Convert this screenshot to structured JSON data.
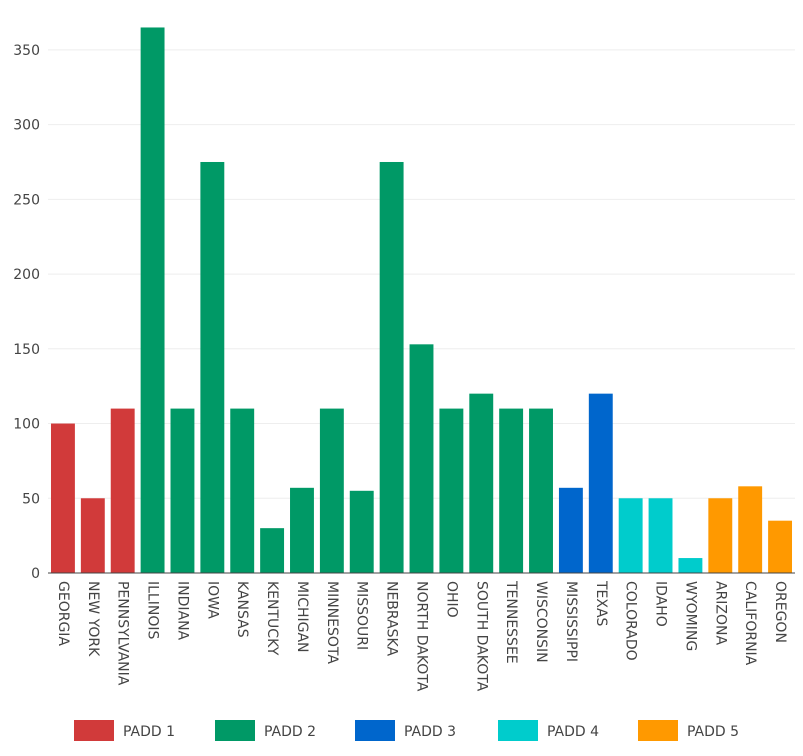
{
  "chart_data": {
    "type": "bar",
    "title": "",
    "xlabel": "",
    "ylabel": "",
    "ylim": [
      0,
      370
    ],
    "yticks": [
      0,
      50,
      100,
      150,
      200,
      250,
      300,
      350
    ],
    "grid": true,
    "legend_position": "bottom",
    "categories": [
      "GEORGIA",
      "NEW YORK",
      "PENNSYLVANIA",
      "ILLINOIS",
      "INDIANA",
      "IOWA",
      "KANSAS",
      "KENTUCKY",
      "MICHIGAN",
      "MINNESOTA",
      "MISSOURI",
      "NEBRASKA",
      "NORTH DAKOTA",
      "OHIO",
      "SOUTH DAKOTA",
      "TENNESSEE",
      "WISCONSIN",
      "MISSISSIPPI",
      "TEXAS",
      "COLORADO",
      "IDAHO",
      "WYOMING",
      "ARIZONA",
      "CALIFORNIA",
      "OREGON"
    ],
    "values": [
      100,
      50,
      110,
      365,
      110,
      275,
      110,
      30,
      57,
      110,
      55,
      275,
      153,
      110,
      120,
      110,
      110,
      57,
      120,
      50,
      50,
      10,
      50,
      58,
      35
    ],
    "groups": [
      "PADD 1",
      "PADD 1",
      "PADD 1",
      "PADD 2",
      "PADD 2",
      "PADD 2",
      "PADD 2",
      "PADD 2",
      "PADD 2",
      "PADD 2",
      "PADD 2",
      "PADD 2",
      "PADD 2",
      "PADD 2",
      "PADD 2",
      "PADD 2",
      "PADD 2",
      "PADD 3",
      "PADD 3",
      "PADD 4",
      "PADD 4",
      "PADD 4",
      "PADD 5",
      "PADD 5",
      "PADD 5"
    ],
    "series": [
      {
        "name": "PADD 1",
        "color": "#d13a3a"
      },
      {
        "name": "PADD 2",
        "color": "#009966"
      },
      {
        "name": "PADD 3",
        "color": "#0066cc"
      },
      {
        "name": "PADD 4",
        "color": "#00cccc"
      },
      {
        "name": "PADD 5",
        "color": "#ff9900"
      }
    ]
  }
}
